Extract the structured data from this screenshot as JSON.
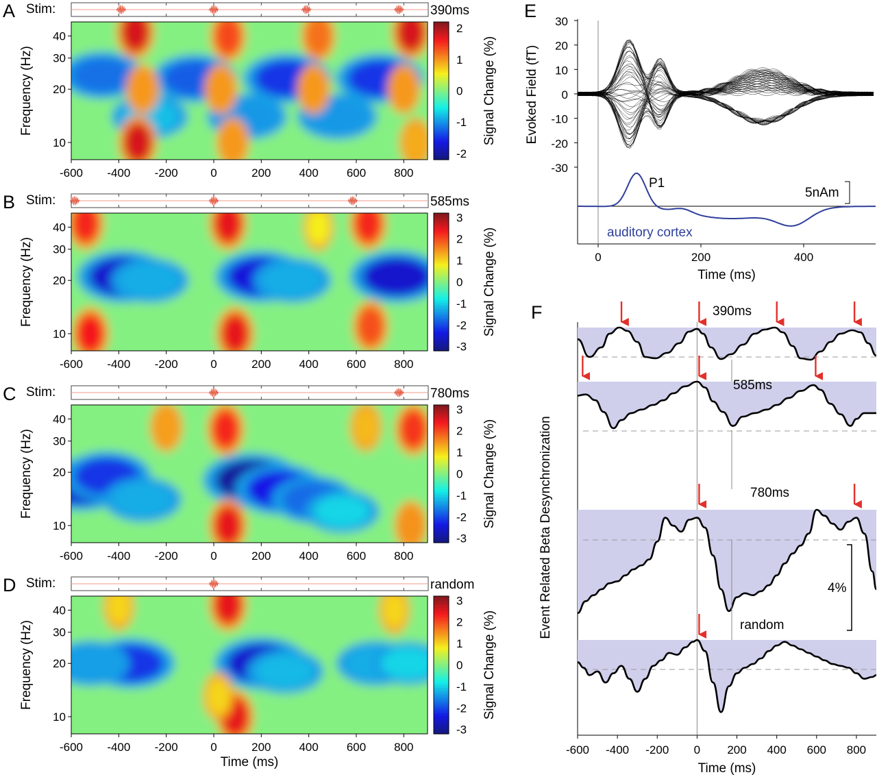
{
  "chart_data": [
    {
      "panel": "A",
      "type": "heatmap",
      "stim_label": "Stim:",
      "interval_label": "390ms",
      "stim_times": [
        -390,
        0,
        390,
        780
      ],
      "ylabel": "Frequency (Hz)",
      "xlabel": "",
      "xticks": [
        -600,
        -400,
        -200,
        0,
        200,
        400,
        600,
        800
      ],
      "xlim": [
        -600,
        900
      ],
      "yticks": [
        10,
        20,
        30,
        40
      ],
      "ylim": [
        8,
        48
      ],
      "yscale": "log",
      "colorbar_label": "Signal Change (%)",
      "colorbar_ticks": [
        2,
        1,
        0,
        -1,
        -2
      ],
      "clim": [
        -2.2,
        2.2
      ],
      "features": [
        {
          "t": -330,
          "f": 42,
          "v": 1.8
        },
        {
          "t": 60,
          "f": 40,
          "v": 1.4
        },
        {
          "t": 440,
          "f": 40,
          "v": 1.2
        },
        {
          "t": 830,
          "f": 42,
          "v": 1.8
        },
        {
          "t": -470,
          "f": 24,
          "v": -1.2
        },
        {
          "t": -80,
          "f": 23,
          "v": -1.3
        },
        {
          "t": 310,
          "f": 23,
          "v": -1.5
        },
        {
          "t": 700,
          "f": 23,
          "v": -1.5
        },
        {
          "t": -270,
          "f": 14,
          "v": -0.8
        },
        {
          "t": 140,
          "f": 14,
          "v": -1.0
        },
        {
          "t": 520,
          "f": 14,
          "v": -1.0
        },
        {
          "t": -300,
          "f": 20,
          "v": 1.0
        },
        {
          "t": 30,
          "f": 20,
          "v": 1.0
        },
        {
          "t": 420,
          "f": 20,
          "v": 1.0
        },
        {
          "t": 800,
          "f": 20,
          "v": 1.0
        },
        {
          "t": -320,
          "f": 10,
          "v": 1.8
        },
        {
          "t": 80,
          "f": 10,
          "v": 1.0
        },
        {
          "t": 850,
          "f": 10,
          "v": 0.9
        }
      ]
    },
    {
      "panel": "B",
      "type": "heatmap",
      "stim_label": "Stim:",
      "interval_label": "585ms",
      "stim_times": [
        -585,
        0,
        585
      ],
      "ylabel": "Frequency (Hz)",
      "xlabel": "",
      "xticks": [
        -600,
        -400,
        -200,
        0,
        200,
        400,
        600,
        800
      ],
      "xlim": [
        -600,
        900
      ],
      "yticks": [
        10,
        20,
        30,
        40
      ],
      "ylim": [
        8,
        48
      ],
      "yscale": "log",
      "colorbar_label": "Signal Change (%)",
      "colorbar_ticks": [
        3,
        2,
        1,
        0,
        -1,
        -2,
        -3
      ],
      "clim": [
        -3.2,
        3.2
      ],
      "features": [
        {
          "t": -540,
          "f": 42,
          "v": 2.3
        },
        {
          "t": 60,
          "f": 42,
          "v": 2.5
        },
        {
          "t": 650,
          "f": 42,
          "v": 2.3
        },
        {
          "t": -380,
          "f": 21,
          "v": -2.6
        },
        {
          "t": 200,
          "f": 21,
          "v": -2.5
        },
        {
          "t": 770,
          "f": 21,
          "v": -2.6
        },
        {
          "t": -270,
          "f": 20,
          "v": -1.3
        },
        {
          "t": 330,
          "f": 20,
          "v": -1.3
        },
        {
          "t": -520,
          "f": 10,
          "v": 2.4
        },
        {
          "t": 90,
          "f": 10,
          "v": 2.5
        },
        {
          "t": 660,
          "f": 11,
          "v": 2.0
        },
        {
          "t": 440,
          "f": 40,
          "v": 0.8
        }
      ]
    },
    {
      "panel": "C",
      "type": "heatmap",
      "stim_label": "Stim:",
      "interval_label": "780ms",
      "stim_times": [
        0,
        780
      ],
      "ylabel": "Frequency (Hz)",
      "xlabel": "",
      "xticks": [
        -600,
        -400,
        -200,
        0,
        200,
        400,
        600,
        800
      ],
      "xlim": [
        -600,
        900
      ],
      "yticks": [
        10,
        20,
        30,
        40
      ],
      "ylim": [
        8,
        48
      ],
      "yscale": "log",
      "colorbar_label": "Signal Change (%)",
      "colorbar_ticks": [
        3,
        2,
        1,
        0,
        -1,
        -2,
        -3
      ],
      "clim": [
        -3.2,
        3.2
      ],
      "features": [
        {
          "t": -560,
          "f": 17,
          "v": -2.6
        },
        {
          "t": -450,
          "f": 19,
          "v": -2.2
        },
        {
          "t": -300,
          "f": 14,
          "v": -1.3
        },
        {
          "t": 160,
          "f": 18,
          "v": -3.0
        },
        {
          "t": 280,
          "f": 16,
          "v": -2.4
        },
        {
          "t": 420,
          "f": 14,
          "v": -1.8
        },
        {
          "t": 540,
          "f": 12,
          "v": -1.0
        },
        {
          "t": -200,
          "f": 36,
          "v": 1.4
        },
        {
          "t": 50,
          "f": 35,
          "v": 2.3
        },
        {
          "t": 840,
          "f": 35,
          "v": 2.2
        },
        {
          "t": 640,
          "f": 36,
          "v": 1.2
        },
        {
          "t": 60,
          "f": 10,
          "v": 2.5
        },
        {
          "t": 830,
          "f": 10,
          "v": 1.5
        }
      ]
    },
    {
      "panel": "D",
      "type": "heatmap",
      "stim_label": "Stim:",
      "interval_label": "random",
      "stim_times": [
        0
      ],
      "ylabel": "Frequency (Hz)",
      "xlabel": "Time (ms)",
      "xticks": [
        -600,
        -400,
        -200,
        0,
        200,
        400,
        600,
        800
      ],
      "xlim": [
        -600,
        900
      ],
      "yticks": [
        10,
        20,
        30,
        40
      ],
      "ylim": [
        8,
        48
      ],
      "yscale": "log",
      "colorbar_label": "Signal Change (%)",
      "colorbar_ticks": [
        3,
        2,
        1,
        0,
        -1,
        -2,
        -3
      ],
      "clim": [
        -3.2,
        3.2
      ],
      "features": [
        {
          "t": -350,
          "f": 20,
          "v": -2.2
        },
        {
          "t": -520,
          "f": 20,
          "v": -1.4
        },
        {
          "t": 200,
          "f": 20,
          "v": -2.6
        },
        {
          "t": 300,
          "f": 18,
          "v": -1.2
        },
        {
          "t": 680,
          "f": 20,
          "v": -1.3
        },
        {
          "t": 820,
          "f": 20,
          "v": -1.0
        },
        {
          "t": 60,
          "f": 43,
          "v": 2.5
        },
        {
          "t": -400,
          "f": 42,
          "v": 1.0
        },
        {
          "t": 760,
          "f": 40,
          "v": 1.0
        },
        {
          "t": 90,
          "f": 10,
          "v": 2.5
        },
        {
          "t": 20,
          "f": 13,
          "v": 1.0
        }
      ]
    },
    {
      "panel": "E",
      "type": "line",
      "ylabel": "Evoked Field (fT)",
      "xlabel": "Time (ms)",
      "xticks": [
        0,
        200,
        400
      ],
      "xlim": [
        -40,
        540
      ],
      "yticks": [
        30,
        20,
        10,
        0,
        -10,
        -20,
        -30
      ],
      "ylim": [
        -30,
        30
      ],
      "peak_label": "P1",
      "peak_time": 75,
      "scale_label": "5nAm",
      "source_label": "auditory cortex",
      "source_color": "#2e3f9a",
      "trace_color": "#000000"
    },
    {
      "panel": "F",
      "type": "line",
      "ylabel": "Event Related Beta Desynchronization",
      "xlabel": "Time (ms)",
      "xticks": [
        -600,
        -400,
        -200,
        0,
        200,
        400,
        600,
        800
      ],
      "xlim": [
        -600,
        900
      ],
      "scale_label": "4%",
      "fill_color": "#cfcfec",
      "arrow_color": "#e2302a",
      "series": [
        {
          "name": "390ms",
          "arrows": [
            -390,
            0,
            390,
            780
          ],
          "x": [
            -600,
            -540,
            -480,
            -440,
            -390,
            -350,
            -300,
            -260,
            -210,
            -150,
            -90,
            -40,
            0,
            30,
            70,
            120,
            170,
            230,
            290,
            340,
            390,
            430,
            480,
            520,
            570,
            620,
            670,
            720,
            780,
            820,
            860,
            900
          ],
          "y": [
            -0.3,
            -1.6,
            -0.9,
            0.1,
            0.55,
            0.3,
            -0.5,
            -1.6,
            -1.7,
            -1.3,
            -0.6,
            0.25,
            0.45,
            0.1,
            -0.9,
            -1.75,
            -1.4,
            -0.7,
            0.1,
            0.4,
            0.55,
            0.2,
            -0.8,
            -1.7,
            -1.8,
            -1.2,
            -0.5,
            0.1,
            0.35,
            0.2,
            -0.6,
            -1.5
          ]
        },
        {
          "name": "585ms",
          "arrows": [
            -585,
            0,
            585
          ],
          "x": [
            -600,
            -560,
            -510,
            -470,
            -420,
            -380,
            -330,
            -280,
            -220,
            -170,
            -120,
            -60,
            0,
            40,
            80,
            130,
            180,
            230,
            290,
            350,
            400,
            460,
            520,
            585,
            620,
            670,
            720,
            770,
            800,
            840,
            900
          ],
          "y": [
            0.5,
            0.6,
            0.1,
            -0.9,
            -2.3,
            -1.6,
            -1.0,
            -0.7,
            -0.3,
            0.1,
            0.7,
            1.3,
            1.7,
            1.2,
            0.0,
            -0.9,
            -2.1,
            -1.3,
            -1.0,
            -0.7,
            -0.3,
            0.3,
            0.9,
            1.4,
            1.0,
            -0.2,
            -1.1,
            -2.1,
            -1.5,
            -1.0,
            -1.0
          ]
        },
        {
          "name": "780ms",
          "arrows": [
            0,
            780
          ],
          "x": [
            -600,
            -560,
            -520,
            -480,
            -440,
            -400,
            -360,
            -320,
            -280,
            -240,
            -200,
            -160,
            -120,
            -80,
            -40,
            0,
            40,
            80,
            120,
            160,
            200,
            240,
            280,
            320,
            360,
            400,
            440,
            480,
            520,
            560,
            600,
            640,
            680,
            720,
            760,
            800,
            840,
            880,
            900
          ],
          "y": [
            -2.4,
            -1.8,
            -1.5,
            -1.2,
            -0.9,
            -0.8,
            -0.5,
            -0.2,
            0.0,
            0.3,
            1.2,
            2.4,
            2.0,
            1.7,
            2.3,
            2.4,
            1.9,
            0.5,
            -1.2,
            -2.3,
            -1.6,
            -1.4,
            -1.5,
            -1.3,
            -1.0,
            -0.5,
            0.1,
            0.6,
            1.0,
            1.6,
            2.8,
            2.5,
            2.1,
            1.8,
            2.2,
            2.4,
            1.6,
            -0.3,
            -1.2
          ]
        },
        {
          "name": "random",
          "arrows": [
            0
          ],
          "x": [
            -600,
            -570,
            -540,
            -500,
            -460,
            -420,
            -380,
            -340,
            -300,
            -260,
            -220,
            -180,
            -140,
            -100,
            -60,
            -20,
            0,
            40,
            80,
            120,
            160,
            200,
            240,
            280,
            320,
            360,
            400,
            440,
            480,
            520,
            560,
            600,
            640,
            680,
            720,
            760,
            800,
            840,
            880,
            900
          ],
          "y": [
            -0.3,
            -0.6,
            -1.0,
            -0.8,
            -1.4,
            -0.9,
            -0.5,
            -1.2,
            -1.9,
            -1.2,
            -0.5,
            -0.2,
            0.2,
            0.1,
            0.5,
            0.8,
            0.9,
            0.3,
            -1.4,
            -3.0,
            -1.6,
            -0.9,
            -0.6,
            -0.4,
            -0.1,
            0.3,
            0.6,
            0.8,
            0.6,
            0.4,
            0.2,
            0.0,
            -0.2,
            -0.4,
            -0.5,
            -0.6,
            -0.9,
            -1.2,
            -1.1,
            -1.0
          ]
        }
      ]
    }
  ],
  "panel_letters": [
    "A",
    "B",
    "C",
    "D",
    "E",
    "F"
  ]
}
